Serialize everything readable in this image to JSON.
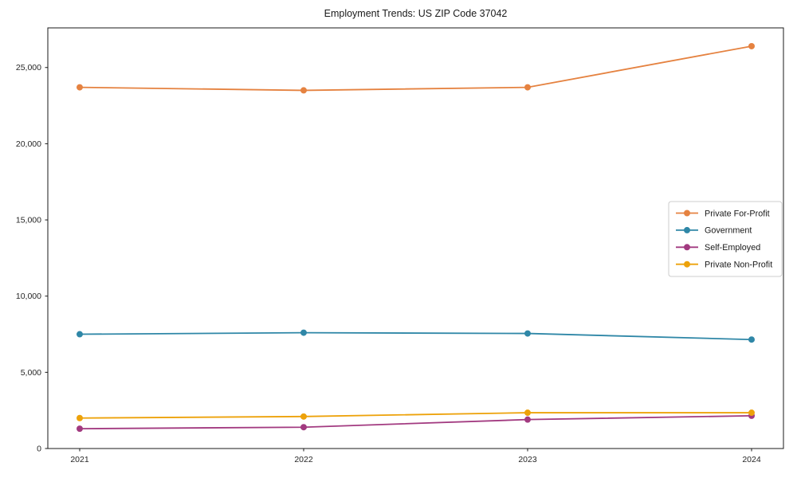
{
  "chart_data": {
    "type": "line",
    "title": "Employment Trends: US ZIP Code 37042",
    "xlabel": "",
    "ylabel": "",
    "categories": [
      "2021",
      "2022",
      "2023",
      "2024"
    ],
    "series": [
      {
        "name": "Private For-Profit",
        "color": "#E58240",
        "values": [
          23700,
          23500,
          23700,
          26400
        ]
      },
      {
        "name": "Government",
        "color": "#2F87A7",
        "values": [
          7500,
          7600,
          7550,
          7150
        ]
      },
      {
        "name": "Self-Employed",
        "color": "#A23A80",
        "values": [
          1300,
          1400,
          1900,
          2150
        ]
      },
      {
        "name": "Private Non-Profit",
        "color": "#EDA20A",
        "values": [
          2000,
          2100,
          2350,
          2350
        ]
      }
    ],
    "ylim": [
      0,
      27600
    ],
    "yticks": [
      0,
      5000,
      10000,
      15000,
      20000,
      25000
    ],
    "ytick_labels": [
      "0",
      "5,000",
      "10,000",
      "15,000",
      "20,000",
      "25,000"
    ],
    "grid": false,
    "marker": "circle",
    "legend_position": "center-right",
    "colors": {
      "background": "#ffffff",
      "spine": "#1a1a1a",
      "tick_text": "#262626",
      "legend_border": "#cccccc",
      "legend_background": "#ffffff"
    }
  }
}
